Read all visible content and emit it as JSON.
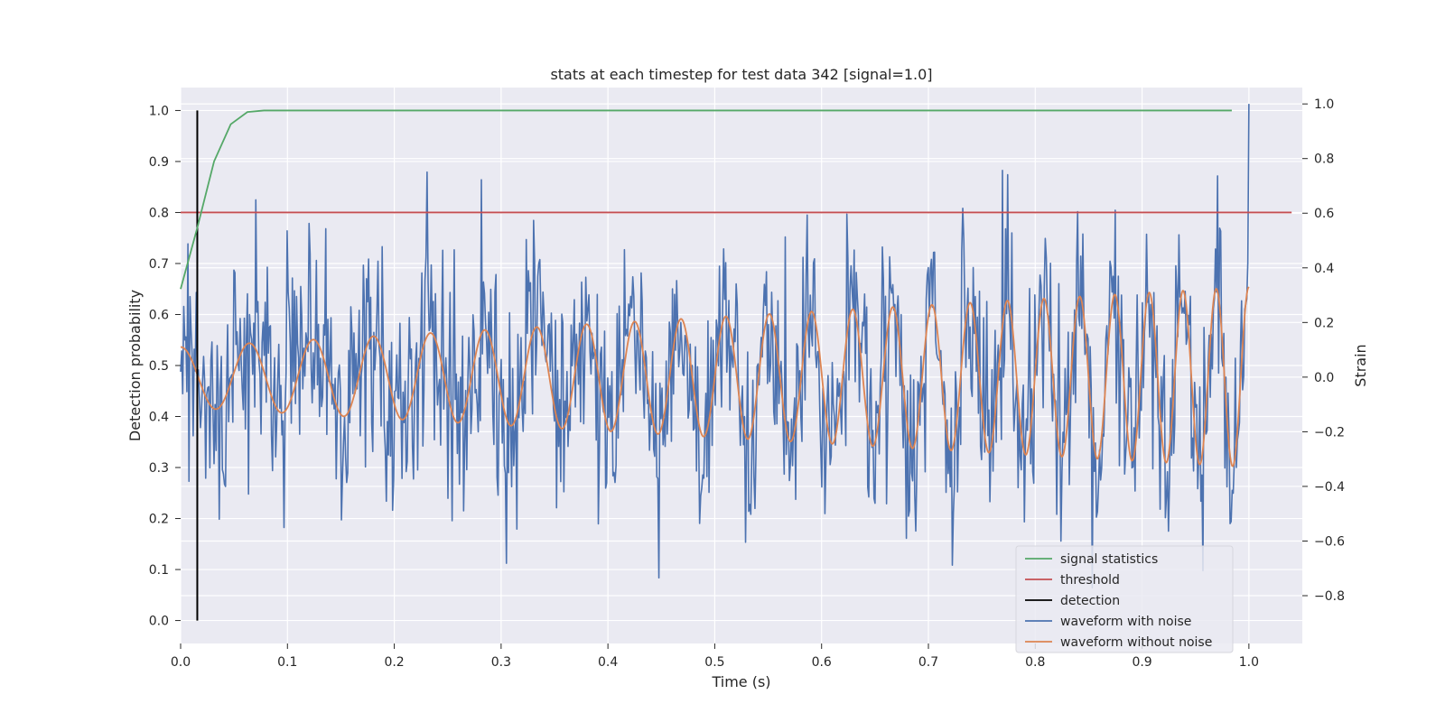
{
  "chart_data": {
    "type": "line",
    "title": "stats at each timestep for test data 342 [signal=1.0]",
    "xlabel": "Time (s)",
    "ylabel_left": "Detection probability",
    "ylabel_right": "Strain",
    "xlim": [
      0.0,
      1.05
    ],
    "ylim_left": [
      -0.045,
      1.045
    ],
    "ylim_right": [
      -0.975,
      1.06
    ],
    "x_ticks": [
      "0.0",
      "0.1",
      "0.2",
      "0.3",
      "0.4",
      "0.5",
      "0.6",
      "0.7",
      "0.8",
      "0.9",
      "1.0"
    ],
    "y_ticks_left": [
      "0.0",
      "0.1",
      "0.2",
      "0.3",
      "0.4",
      "0.5",
      "0.6",
      "0.7",
      "0.8",
      "0.9",
      "1.0"
    ],
    "y_ticks_right": [
      "−0.8",
      "−0.6",
      "−0.4",
      "−0.2",
      "0.0",
      "0.2",
      "0.4",
      "0.6",
      "0.8",
      "1.0"
    ],
    "grid": true,
    "legend_position": "lower right",
    "colors": {
      "signal_statistics": "#55a868",
      "threshold": "#c44e52",
      "detection": "#000000",
      "waveform_with_noise": "#4c72b0",
      "waveform_without_noise": "#dd8452",
      "plot_background": "#eaeaf2",
      "grid": "#ffffff"
    },
    "signal_statistics": {
      "x": [
        0.0,
        0.0156,
        0.0313,
        0.0469,
        0.0625,
        0.078,
        0.1,
        0.2,
        0.4,
        0.6,
        0.8,
        0.984
      ],
      "y": [
        0.65,
        0.77,
        0.9,
        0.973,
        0.997,
        1.0,
        1.0,
        1.0,
        1.0,
        1.0,
        1.0,
        1.0
      ]
    },
    "threshold": {
      "y": 0.8,
      "x": [
        0.0,
        1.04
      ]
    },
    "detection": {
      "x": 0.0156,
      "y": [
        0.0,
        1.0
      ]
    },
    "waveform_without_noise": {
      "t_range": [
        0.0,
        1.0
      ],
      "amplitude_start": 0.11,
      "amplitude_end": 0.33,
      "cycles_start_hz": 15,
      "cycles_end_hz": 33,
      "axis": "right"
    },
    "waveform_with_noise": {
      "t_range": [
        0.0,
        1.0
      ],
      "samples": 1024,
      "noise_sigma": 0.21,
      "y_max_shown": 1.0,
      "y_min_shown": -0.87,
      "axis": "right"
    },
    "legend": [
      {
        "label": "signal statistics",
        "color": "#55a868"
      },
      {
        "label": "threshold",
        "color": "#c44e52"
      },
      {
        "label": "detection",
        "color": "#000000"
      },
      {
        "label": "waveform with noise",
        "color": "#4c72b0"
      },
      {
        "label": "waveform without noise",
        "color": "#dd8452"
      }
    ]
  }
}
